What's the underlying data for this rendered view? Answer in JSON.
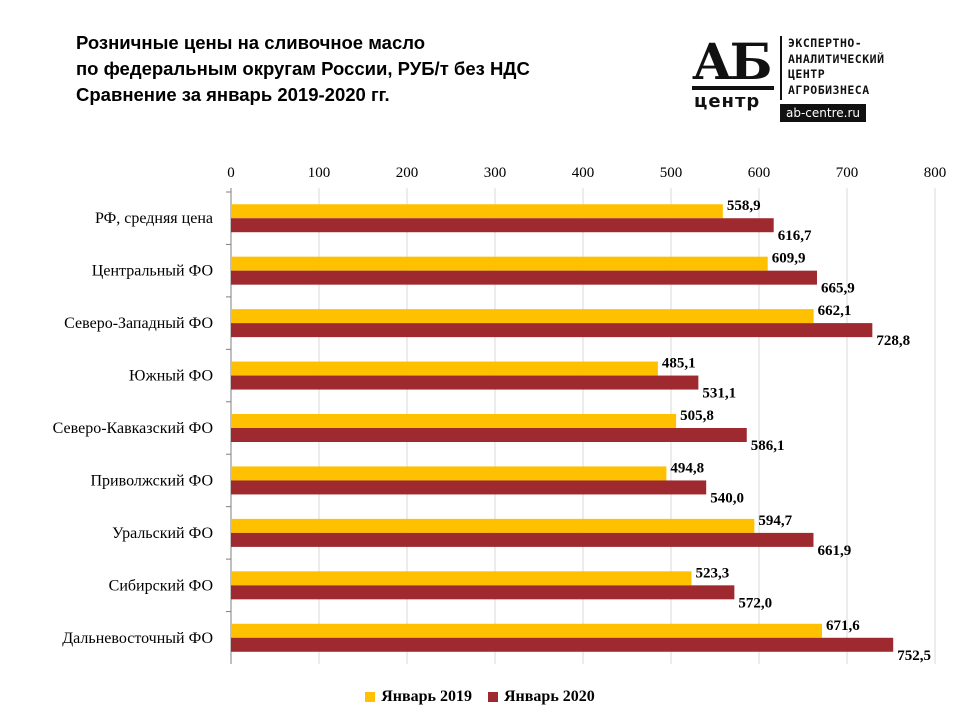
{
  "title_lines": [
    "Розничные цены на сливочное масло",
    "по федеральным округам России, РУБ/т без НДС",
    "Сравнение за январь 2019-2020 гг."
  ],
  "logo": {
    "mark": "АБ",
    "mark_sub": "центр",
    "tagline_lines": [
      "ЭКСПЕРТНО-",
      "АНАЛИТИЧЕСКИЙ",
      "ЦЕНТР",
      "АГРОБИЗНЕСА"
    ],
    "site": "ab-centre.ru"
  },
  "colors": {
    "series_2019": "#FFC000",
    "series_2020": "#9E2A2F",
    "grid": "#D9D9D9",
    "axis": "#7F7F7F"
  },
  "chart_data": {
    "type": "bar",
    "orientation": "horizontal",
    "title": "Розничные цены на сливочное масло по федеральным округам России, РУБ/т без НДС Сравнение за январь 2019-2020 гг.",
    "categories": [
      "РФ, средняя цена",
      "Центральный ФО",
      "Северо-Западный ФО",
      "Южный ФО",
      "Северо-Кавказский ФО",
      "Приволжский ФО",
      "Уральский ФО",
      "Сибирский ФО",
      "Дальневосточный ФО"
    ],
    "series": [
      {
        "name": "Январь 2019",
        "values": [
          558.9,
          609.9,
          662.1,
          485.1,
          505.8,
          494.8,
          594.7,
          523.3,
          671.6
        ],
        "labels": [
          "558,9",
          "609,9",
          "662,1",
          "485,1",
          "505,8",
          "494,8",
          "594,7",
          "523,3",
          "671,6"
        ]
      },
      {
        "name": "Январь 2020",
        "values": [
          616.7,
          665.9,
          728.8,
          531.1,
          586.1,
          540.0,
          661.9,
          572.0,
          752.5
        ],
        "labels": [
          "616,7",
          "665,9",
          "728,8",
          "531,1",
          "586,1",
          "540,0",
          "661,9",
          "572,0",
          "752,5"
        ]
      }
    ],
    "xlim": [
      0,
      800
    ],
    "xticks": [
      0,
      100,
      200,
      300,
      400,
      500,
      600,
      700,
      800
    ],
    "xtick_labels": [
      "0",
      "100",
      "200",
      "300",
      "400",
      "500",
      "600",
      "700",
      "800"
    ],
    "x_axis_position": "top",
    "grid": true,
    "legend_position": "bottom"
  }
}
